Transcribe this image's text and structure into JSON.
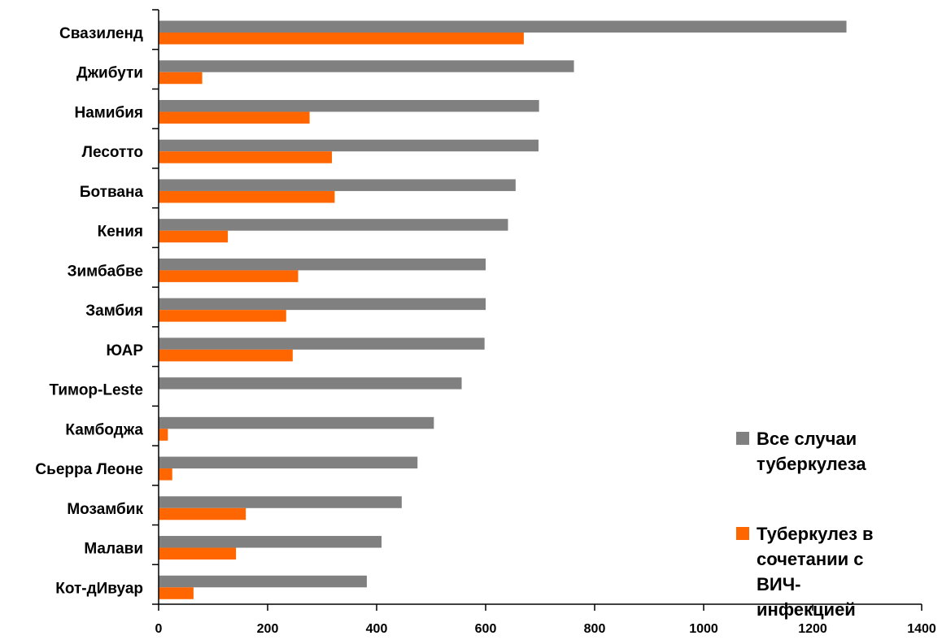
{
  "chart_data": {
    "type": "bar",
    "orientation": "horizontal",
    "categories": [
      "Свазиленд",
      "Джибути",
      "Намибия",
      "Лесотто",
      "Ботвана",
      "Кения",
      "Зимбабве",
      "Замбия",
      "ЮАР",
      "Тимор-Leste",
      "Камбоджа",
      "Сьерра Леоне",
      "Мозамбик",
      "Малави",
      "Кот-дИвуар"
    ],
    "series": [
      {
        "name": "Все случаи туберкулеза",
        "color": "#808080",
        "values": [
          1262,
          762,
          698,
          697,
          655,
          641,
          600,
          600,
          598,
          556,
          505,
          475,
          446,
          409,
          382
        ]
      },
      {
        "name": "Туберкулез в сочетании с ВИЧ-инфекцией",
        "color": "#ff6600",
        "values": [
          670,
          80,
          277,
          318,
          323,
          127,
          256,
          234,
          246,
          0,
          17,
          25,
          160,
          142,
          64
        ]
      }
    ],
    "xlim": [
      0,
      1400
    ],
    "xticks": [
      "0",
      "200",
      "400",
      "600",
      "800",
      "1000",
      "1200",
      "1400"
    ],
    "title": "",
    "xlabel": "",
    "ylabel": "",
    "legend_position": "right",
    "grid": false
  }
}
